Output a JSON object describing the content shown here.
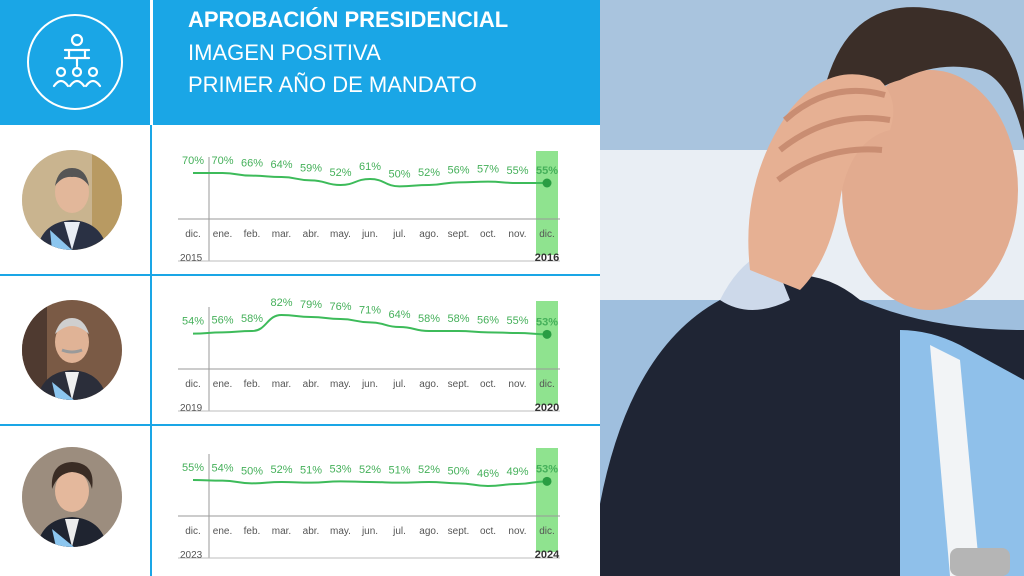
{
  "header": {
    "title": "APROBACIÓN PRESIDENCIAL",
    "subtitle1": "IMAGEN POSITIVA",
    "subtitle2": "PRIMER AÑO DE MANDATO",
    "icon": "presidential-audience-icon"
  },
  "colors": {
    "header_blue": "#1aa6e6",
    "line_green": "#3dbb5a",
    "label_green": "#45b05a",
    "highlight_green": "#8fe38f",
    "axis_gray": "#555555"
  },
  "chart_data": [
    {
      "type": "line",
      "x": [
        "dic.",
        "ene.",
        "feb.",
        "mar.",
        "abr.",
        "may.",
        "jun.",
        "jul.",
        "ago.",
        "sept.",
        "oct.",
        "nov.",
        "dic."
      ],
      "series": [
        {
          "values": [
            70,
            70,
            66,
            64,
            59,
            52,
            61,
            50,
            52,
            56,
            57,
            55,
            55
          ]
        }
      ],
      "value_labels": [
        "70%",
        "70%",
        "66%",
        "64%",
        "59%",
        "52%",
        "61%",
        "50%",
        "52%",
        "56%",
        "57%",
        "55%",
        "55%"
      ],
      "start_year": "2015",
      "end_year": "2016",
      "highlight": "last",
      "ylim": [
        40,
        85
      ]
    },
    {
      "type": "line",
      "x": [
        "dic.",
        "ene.",
        "feb.",
        "mar.",
        "abr.",
        "may.",
        "jun.",
        "jul.",
        "ago.",
        "sept.",
        "oct.",
        "nov.",
        "dic."
      ],
      "series": [
        {
          "values": [
            54,
            56,
            58,
            82,
            79,
            76,
            71,
            64,
            58,
            58,
            56,
            55,
            53
          ]
        }
      ],
      "value_labels": [
        "54%",
        "56%",
        "58%",
        "82%",
        "79%",
        "76%",
        "71%",
        "64%",
        "58%",
        "58%",
        "56%",
        "55%",
        "53%"
      ],
      "start_year": "2019",
      "end_year": "2020",
      "highlight": "last",
      "ylim": [
        40,
        85
      ]
    },
    {
      "type": "line",
      "x": [
        "dic.",
        "ene.",
        "feb.",
        "mar.",
        "abr.",
        "may.",
        "jun.",
        "jul.",
        "ago.",
        "sept.",
        "oct.",
        "nov.",
        "dic."
      ],
      "series": [
        {
          "values": [
            55,
            54,
            50,
            52,
            51,
            53,
            52,
            51,
            52,
            50,
            46,
            49,
            53
          ]
        }
      ],
      "value_labels": [
        "55%",
        "54%",
        "50%",
        "52%",
        "51%",
        "53%",
        "52%",
        "51%",
        "52%",
        "50%",
        "46%",
        "49%",
        "53%"
      ],
      "start_year": "2023",
      "end_year": "2024",
      "highlight": "last",
      "ylim": [
        40,
        85
      ]
    }
  ]
}
